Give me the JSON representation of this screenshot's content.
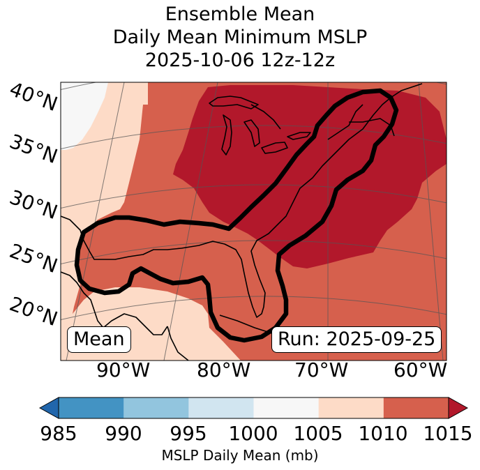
{
  "title": {
    "line1": "Ensemble Mean",
    "line2": "Daily Mean Minimum MSLP",
    "line3": "2025-10-06 12z-12z"
  },
  "map": {
    "lat_labels": [
      "40°N",
      "35°N",
      "30°N",
      "25°N",
      "20°N"
    ],
    "lon_labels": [
      "90°W",
      "80°W",
      "70°W",
      "60°W"
    ],
    "mean_label": "Mean",
    "run_label": "Run: 2025-09-25",
    "region_colors": {
      "band_1000_1005": "#f7f7f7",
      "band_1005_1010": "#fddbc7",
      "band_1010_1015": "#d6604d",
      "band_1015_plus": "#b2182b",
      "contour": "#000000",
      "coastline": "#000000"
    }
  },
  "colorbar": {
    "label": "MSLP Daily Mean (mb)",
    "ticks": [
      985,
      990,
      995,
      1000,
      1005,
      1010,
      1015
    ],
    "tick_text": [
      "985",
      "990",
      "995",
      "1000",
      "1005",
      "1010",
      "1015"
    ],
    "colors": [
      "#4393c3",
      "#92c5de",
      "#d1e5f0",
      "#f7f7f7",
      "#fddbc7",
      "#d6604d"
    ],
    "under_color": "#2166ac",
    "over_color": "#b2182b"
  }
}
